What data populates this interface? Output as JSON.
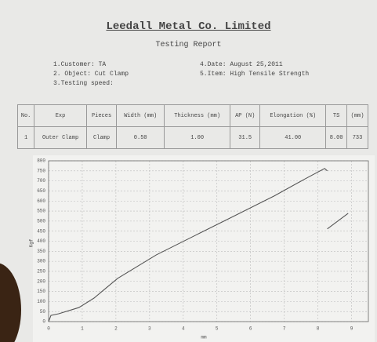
{
  "header": {
    "title": "Leedall Metal Co. Limited",
    "subtitle": "Testing Report"
  },
  "info": {
    "left": [
      "1.Customer: TA",
      "2. Object: Cut Clamp",
      "3.Testing speed:"
    ],
    "right": [
      "4.Date: August 25,2011",
      "5.Item: High Tensile Strength"
    ]
  },
  "table": {
    "header": [
      "No.",
      "Exp",
      "Pieces",
      "Width (mm)",
      "Thickness (mm)",
      "AP (N)",
      "Elongation (%)",
      "TS",
      "(mm)"
    ],
    "rows": [
      [
        "1",
        "Outer Clamp",
        "Clamp",
        "0.50",
        "1.00",
        "31.5",
        "41.00",
        "8.00",
        "733"
      ]
    ]
  },
  "chart": {
    "type": "line",
    "x_label": "mm",
    "y_label": "Kgf",
    "xlim": [
      0,
      9.5
    ],
    "xticks": [
      0,
      1,
      2,
      3,
      4,
      5,
      6,
      7,
      8,
      9
    ],
    "ylim": [
      0,
      800
    ],
    "yticks": [
      0,
      50,
      100,
      150,
      200,
      250,
      300,
      350,
      400,
      450,
      500,
      550,
      600,
      650,
      700,
      750,
      800
    ],
    "grid": true,
    "series": [
      {
        "color": "#555555",
        "x": [
          0,
          0.07,
          0.3,
          0.9,
          1.35,
          2.05,
          3.2,
          4.37,
          5.53,
          6.7,
          7.63,
          8.2,
          8.28,
          null,
          8.28,
          8.9
        ],
        "values": [
          0,
          31,
          39,
          70,
          117,
          215,
          332,
          430,
          527,
          625,
          711,
          762,
          750,
          null,
          461,
          539
        ]
      }
    ]
  }
}
